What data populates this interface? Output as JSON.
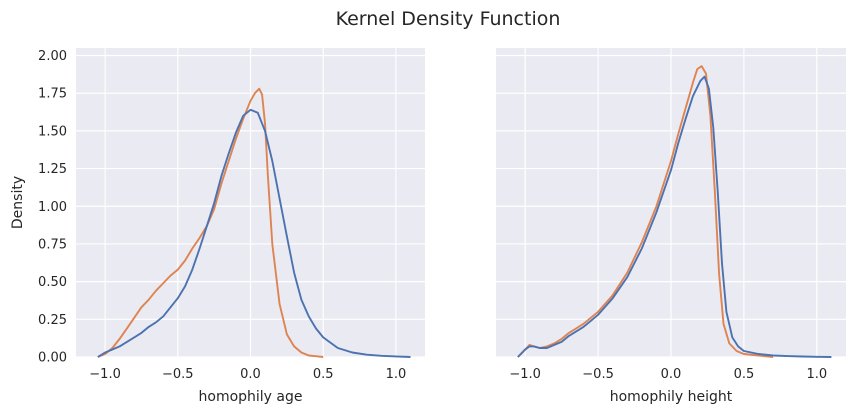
{
  "figure": {
    "title": "Kernel Density Function"
  },
  "colors": {
    "background": "#eaeaf2",
    "series_orange": "#dd8452",
    "series_blue": "#4c72b0"
  },
  "chart_data": [
    {
      "type": "line",
      "xlabel": "homophily age",
      "ylabel": "Density",
      "xlim": [
        -1.2,
        1.2
      ],
      "ylim": [
        0,
        2.05
      ],
      "xticks": [
        "−1.0",
        "−0.5",
        "0.0",
        "0.5",
        "1.0"
      ],
      "xtick_values": [
        -1.0,
        -0.5,
        0.0,
        0.5,
        1.0
      ],
      "yticks": [
        "0.00",
        "0.25",
        "0.50",
        "0.75",
        "1.00",
        "1.25",
        "1.50",
        "1.75",
        "2.00"
      ],
      "ytick_values": [
        0.0,
        0.25,
        0.5,
        0.75,
        1.0,
        1.25,
        1.5,
        1.75,
        2.0
      ],
      "grid": true,
      "series": [
        {
          "color": "#dd8452",
          "x": [
            -1.05,
            -1.0,
            -0.95,
            -0.9,
            -0.85,
            -0.8,
            -0.75,
            -0.7,
            -0.65,
            -0.6,
            -0.55,
            -0.5,
            -0.45,
            -0.4,
            -0.35,
            -0.3,
            -0.25,
            -0.2,
            -0.15,
            -0.1,
            -0.05,
            0.0,
            0.03,
            0.06,
            0.08,
            0.1,
            0.12,
            0.15,
            0.2,
            0.25,
            0.3,
            0.35,
            0.4,
            0.45,
            0.5
          ],
          "y": [
            0.0,
            0.02,
            0.06,
            0.12,
            0.19,
            0.26,
            0.33,
            0.38,
            0.44,
            0.49,
            0.54,
            0.58,
            0.64,
            0.72,
            0.79,
            0.87,
            0.98,
            1.15,
            1.3,
            1.45,
            1.58,
            1.7,
            1.75,
            1.78,
            1.74,
            1.55,
            1.2,
            0.75,
            0.35,
            0.15,
            0.07,
            0.03,
            0.01,
            0.005,
            0.0
          ]
        },
        {
          "color": "#4c72b0",
          "x": [
            -1.05,
            -1.0,
            -0.95,
            -0.9,
            -0.85,
            -0.8,
            -0.75,
            -0.7,
            -0.65,
            -0.6,
            -0.55,
            -0.5,
            -0.45,
            -0.4,
            -0.35,
            -0.3,
            -0.25,
            -0.2,
            -0.15,
            -0.1,
            -0.05,
            0.0,
            0.05,
            0.1,
            0.15,
            0.2,
            0.25,
            0.3,
            0.35,
            0.4,
            0.45,
            0.5,
            0.6,
            0.7,
            0.8,
            0.9,
            1.0,
            1.1
          ],
          "y": [
            0.0,
            0.03,
            0.05,
            0.07,
            0.1,
            0.13,
            0.16,
            0.2,
            0.23,
            0.27,
            0.33,
            0.39,
            0.47,
            0.58,
            0.72,
            0.87,
            1.02,
            1.2,
            1.35,
            1.49,
            1.6,
            1.64,
            1.62,
            1.5,
            1.3,
            1.05,
            0.8,
            0.56,
            0.38,
            0.27,
            0.19,
            0.13,
            0.06,
            0.03,
            0.015,
            0.008,
            0.004,
            0.0
          ]
        }
      ]
    },
    {
      "type": "line",
      "xlabel": "homophily height",
      "ylabel": "",
      "xlim": [
        -1.2,
        1.2
      ],
      "ylim": [
        0,
        2.05
      ],
      "xticks": [
        "−1.0",
        "−0.5",
        "0.0",
        "0.5",
        "1.0"
      ],
      "xtick_values": [
        -1.0,
        -0.5,
        0.0,
        0.5,
        1.0
      ],
      "yticks": [],
      "ytick_values": [
        0.0,
        0.25,
        0.5,
        0.75,
        1.0,
        1.25,
        1.5,
        1.75,
        2.0
      ],
      "grid": true,
      "series": [
        {
          "color": "#dd8452",
          "x": [
            -1.05,
            -1.0,
            -0.97,
            -0.94,
            -0.9,
            -0.85,
            -0.8,
            -0.75,
            -0.7,
            -0.65,
            -0.6,
            -0.5,
            -0.4,
            -0.3,
            -0.2,
            -0.1,
            0.0,
            0.05,
            0.1,
            0.15,
            0.18,
            0.21,
            0.24,
            0.27,
            0.3,
            0.33,
            0.36,
            0.4,
            0.45,
            0.5,
            0.6,
            0.7
          ],
          "y": [
            0.0,
            0.05,
            0.08,
            0.07,
            0.06,
            0.07,
            0.09,
            0.12,
            0.16,
            0.19,
            0.22,
            0.3,
            0.41,
            0.56,
            0.76,
            1.0,
            1.3,
            1.48,
            1.65,
            1.82,
            1.91,
            1.93,
            1.88,
            1.6,
            1.1,
            0.55,
            0.22,
            0.09,
            0.04,
            0.02,
            0.01,
            0.0
          ]
        },
        {
          "color": "#4c72b0",
          "x": [
            -1.05,
            -1.0,
            -0.97,
            -0.94,
            -0.9,
            -0.85,
            -0.8,
            -0.75,
            -0.7,
            -0.65,
            -0.6,
            -0.5,
            -0.4,
            -0.3,
            -0.2,
            -0.1,
            0.0,
            0.05,
            0.1,
            0.15,
            0.2,
            0.23,
            0.26,
            0.29,
            0.32,
            0.35,
            0.38,
            0.42,
            0.46,
            0.5,
            0.6,
            0.7,
            0.8,
            0.9,
            1.0,
            1.1
          ],
          "y": [
            0.0,
            0.05,
            0.07,
            0.07,
            0.06,
            0.06,
            0.08,
            0.1,
            0.14,
            0.17,
            0.2,
            0.28,
            0.39,
            0.53,
            0.72,
            0.96,
            1.24,
            1.42,
            1.58,
            1.73,
            1.83,
            1.86,
            1.78,
            1.52,
            1.1,
            0.62,
            0.3,
            0.13,
            0.07,
            0.04,
            0.02,
            0.01,
            0.006,
            0.003,
            0.0015,
            0.0
          ]
        }
      ]
    }
  ]
}
